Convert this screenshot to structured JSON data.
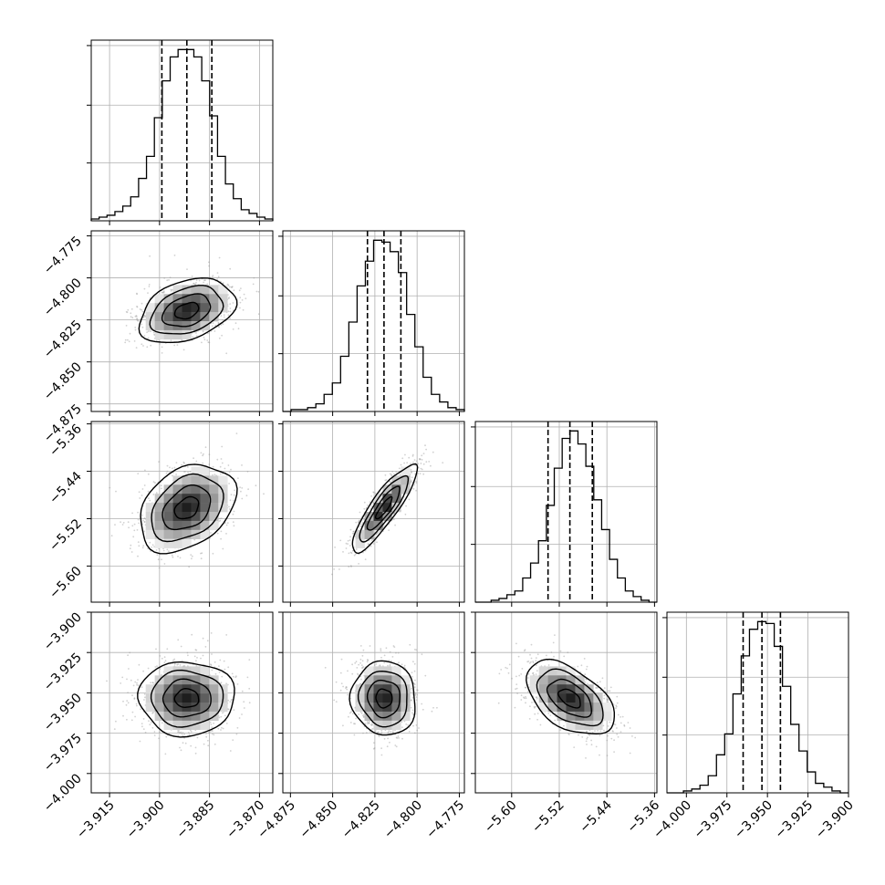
{
  "chart_data": {
    "type": "corner",
    "title": "",
    "n_params": 4,
    "grid": true,
    "colors": {
      "line": "#000000",
      "grid": "#b0b0b0",
      "points": "#9a9a9a"
    },
    "axes": [
      {
        "index": 0,
        "range": [
          -3.9205,
          -3.866
        ],
        "median": -3.8918,
        "q16": -3.8993,
        "q84": -3.8843,
        "ticks": [
          -3.915,
          -3.9,
          -3.885,
          -3.87
        ],
        "tick_labels": [
          "−3.915",
          "−3.900",
          "−3.885",
          "−3.870"
        ]
      },
      {
        "index": 1,
        "range": [
          -4.8795,
          -4.772
        ],
        "median": -4.8196,
        "q16": -4.8294,
        "q84": -4.8096,
        "ticks": [
          -4.875,
          -4.85,
          -4.825,
          -4.8,
          -4.775
        ],
        "tick_labels": [
          "−4.875",
          "−4.850",
          "−4.825",
          "−4.800",
          "−4.775"
        ]
      },
      {
        "index": 2,
        "range": [
          -5.661,
          -5.356
        ],
        "median": -5.5022,
        "q16": -5.5389,
        "q84": -5.4645,
        "ticks": [
          -5.6,
          -5.52,
          -5.44,
          -5.36
        ],
        "tick_labels": [
          "−5.60",
          "−5.52",
          "−5.44",
          "−5.36"
        ]
      },
      {
        "index": 3,
        "range": [
          -4.012,
          -3.9
        ],
        "median": -3.9534,
        "q16": -3.965,
        "q84": -3.942,
        "ticks": [
          -4.0,
          -3.975,
          -3.95,
          -3.925,
          -3.9
        ],
        "tick_labels": [
          "−4.000",
          "−3.975",
          "−3.950",
          "−3.925",
          "−3.900"
        ]
      }
    ],
    "histograms": [
      {
        "param": 0,
        "counts": [
          1,
          2,
          3,
          5,
          8,
          13,
          23,
          35,
          56,
          76,
          89,
          93,
          93,
          89,
          76,
          57,
          35,
          20,
          12,
          6,
          4,
          2,
          1
        ]
      },
      {
        "param": 1,
        "counts": [
          0,
          1,
          1,
          2,
          4,
          9,
          15,
          29,
          47,
          66,
          79,
          90,
          89,
          84,
          73,
          51,
          34,
          18,
          9,
          5,
          2,
          1
        ]
      },
      {
        "param": 2,
        "counts": [
          0,
          0,
          1,
          2,
          4,
          6,
          13,
          21,
          33,
          52,
          72,
          88,
          92,
          85,
          73,
          55,
          39,
          23,
          13,
          6,
          3,
          1,
          0
        ]
      },
      {
        "param": 3,
        "counts": [
          0,
          0,
          1,
          2,
          4,
          9,
          20,
          31,
          52,
          72,
          86,
          90,
          89,
          77,
          56,
          36,
          22,
          11,
          5,
          3,
          1,
          0
        ]
      }
    ],
    "pairs": [
      {
        "x": 0,
        "y": 1,
        "mean": [
          -3.8918,
          -4.8196
        ],
        "sd": [
          0.0072,
          0.0096
        ],
        "rho": 0.35
      },
      {
        "x": 0,
        "y": 2,
        "mean": [
          -3.8918,
          -5.5022
        ],
        "sd": [
          0.0072,
          0.037
        ],
        "rho": 0.33
      },
      {
        "x": 1,
        "y": 2,
        "mean": [
          -4.8196,
          -5.5022
        ],
        "sd": [
          0.0096,
          0.037
        ],
        "rho": 0.87
      },
      {
        "x": 0,
        "y": 3,
        "mean": [
          -3.8918,
          -3.9534
        ],
        "sd": [
          0.0072,
          0.0115
        ],
        "rho": 0.0
      },
      {
        "x": 1,
        "y": 3,
        "mean": [
          -4.8196,
          -3.9534
        ],
        "sd": [
          0.0096,
          0.0115
        ],
        "rho": -0.05
      },
      {
        "x": 2,
        "y": 3,
        "mean": [
          -5.5022,
          -3.9534
        ],
        "sd": [
          0.037,
          0.0115
        ],
        "rho": -0.5
      }
    ],
    "contour_levels_sigma": [
      0.5,
      1.0,
      1.5,
      2.0
    ]
  }
}
